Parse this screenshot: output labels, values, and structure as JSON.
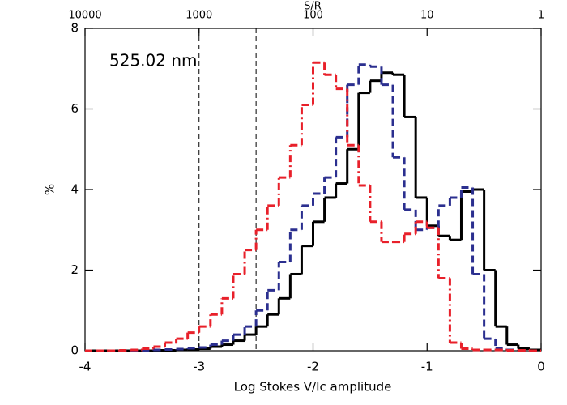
{
  "chart_data": {
    "type": "histogram",
    "xlabel": "Log Stokes V/Ic amplitude",
    "ylabel": "%",
    "x2label": "S/R",
    "annotation": "525.02 nm",
    "xlim": [
      -4,
      0
    ],
    "ylim": [
      0,
      8
    ],
    "xticks": [
      -4,
      -3,
      -2,
      -1,
      0
    ],
    "yticks": [
      0,
      2,
      4,
      6,
      8
    ],
    "x2ticks": [
      {
        "value": -4,
        "label": "10000"
      },
      {
        "value": -3,
        "label": "1000"
      },
      {
        "value": -2,
        "label": "100"
      },
      {
        "value": -1,
        "label": "10"
      },
      {
        "value": 0,
        "label": "1"
      }
    ],
    "vlines": [
      -3,
      -2.5
    ],
    "bins": [
      -4.0,
      -3.9,
      -3.8,
      -3.7,
      -3.6,
      -3.5,
      -3.4,
      -3.3,
      -3.2,
      -3.1,
      -3.0,
      -2.9,
      -2.8,
      -2.7,
      -2.6,
      -2.5,
      -2.4,
      -2.3,
      -2.2,
      -2.1,
      -2.0,
      -1.9,
      -1.8,
      -1.7,
      -1.6,
      -1.5,
      -1.4,
      -1.3,
      -1.2,
      -1.1,
      -1.0,
      -0.9,
      -0.8,
      -0.7,
      -0.6,
      -0.5,
      -0.4,
      -0.3,
      -0.2,
      -0.1,
      0.0
    ],
    "series": [
      {
        "color": "#000000",
        "linestyle": "solid",
        "values": [
          0,
          0,
          0,
          0,
          0,
          0,
          0.01,
          0.01,
          0.02,
          0.03,
          0.05,
          0.1,
          0.15,
          0.25,
          0.4,
          0.6,
          0.9,
          1.3,
          1.9,
          2.6,
          3.2,
          3.8,
          4.15,
          5.0,
          6.4,
          6.7,
          6.9,
          6.85,
          5.8,
          3.8,
          3.1,
          2.85,
          2.75,
          3.95,
          4.0,
          2.0,
          0.6,
          0.15,
          0.05,
          0.02
        ]
      },
      {
        "color": "#2b2f8f",
        "linestyle": "dashed",
        "values": [
          0,
          0,
          0,
          0,
          0,
          0.01,
          0.02,
          0.03,
          0.04,
          0.06,
          0.08,
          0.15,
          0.25,
          0.4,
          0.6,
          1.0,
          1.5,
          2.2,
          3.0,
          3.6,
          3.9,
          4.3,
          5.3,
          6.6,
          7.1,
          7.05,
          6.6,
          4.8,
          3.5,
          3.0,
          3.05,
          3.6,
          3.8,
          4.05,
          1.9,
          0.3,
          0.05,
          0.02,
          0.01,
          0
        ]
      },
      {
        "color": "#e8202a",
        "linestyle": "dashdot",
        "values": [
          0,
          0,
          0,
          0.01,
          0.02,
          0.05,
          0.1,
          0.2,
          0.3,
          0.45,
          0.6,
          0.9,
          1.3,
          1.9,
          2.5,
          3.0,
          3.6,
          4.3,
          5.1,
          6.1,
          7.15,
          6.85,
          6.5,
          5.1,
          4.1,
          3.2,
          2.7,
          2.7,
          2.9,
          3.2,
          3.05,
          1.8,
          0.2,
          0.05,
          0.02,
          0.02,
          0.02,
          0.01,
          0.01,
          0
        ]
      }
    ]
  }
}
